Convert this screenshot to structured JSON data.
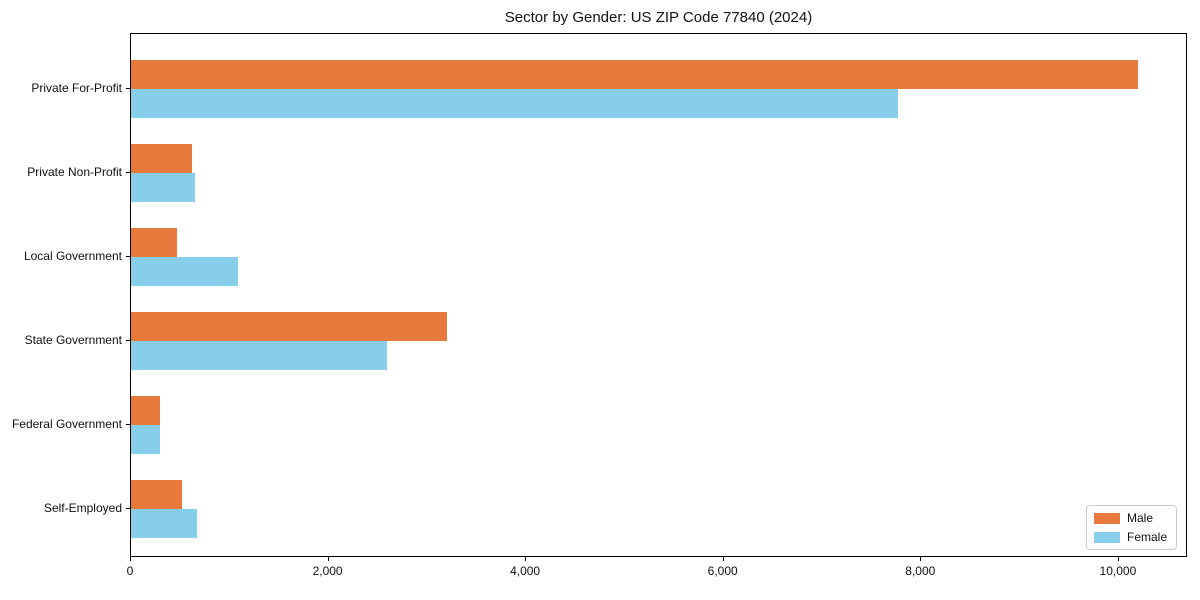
{
  "chart_data": {
    "type": "bar",
    "orientation": "horizontal",
    "title": "Sector by Gender: US ZIP Code 77840 (2024)",
    "categories": [
      "Private For-Profit",
      "Private Non-Profit",
      "Local Government",
      "State Government",
      "Federal Government",
      "Self-Employed"
    ],
    "series": [
      {
        "name": "Male",
        "color": "#E8793D",
        "values": [
          10190,
          620,
          470,
          3195,
          290,
          515
        ]
      },
      {
        "name": "Female",
        "color": "#87CEEB",
        "values": [
          7760,
          645,
          1080,
          2590,
          295,
          670
        ]
      }
    ],
    "xlabel": "",
    "ylabel": "",
    "xlim": [
      0,
      10700
    ],
    "xticks": [
      0,
      2000,
      4000,
      6000,
      8000,
      10000
    ],
    "xtick_labels": [
      "0",
      "2,000",
      "4,000",
      "6,000",
      "8,000",
      "10,000"
    ],
    "legend_position": "lower right",
    "grid": false,
    "frame": true
  }
}
